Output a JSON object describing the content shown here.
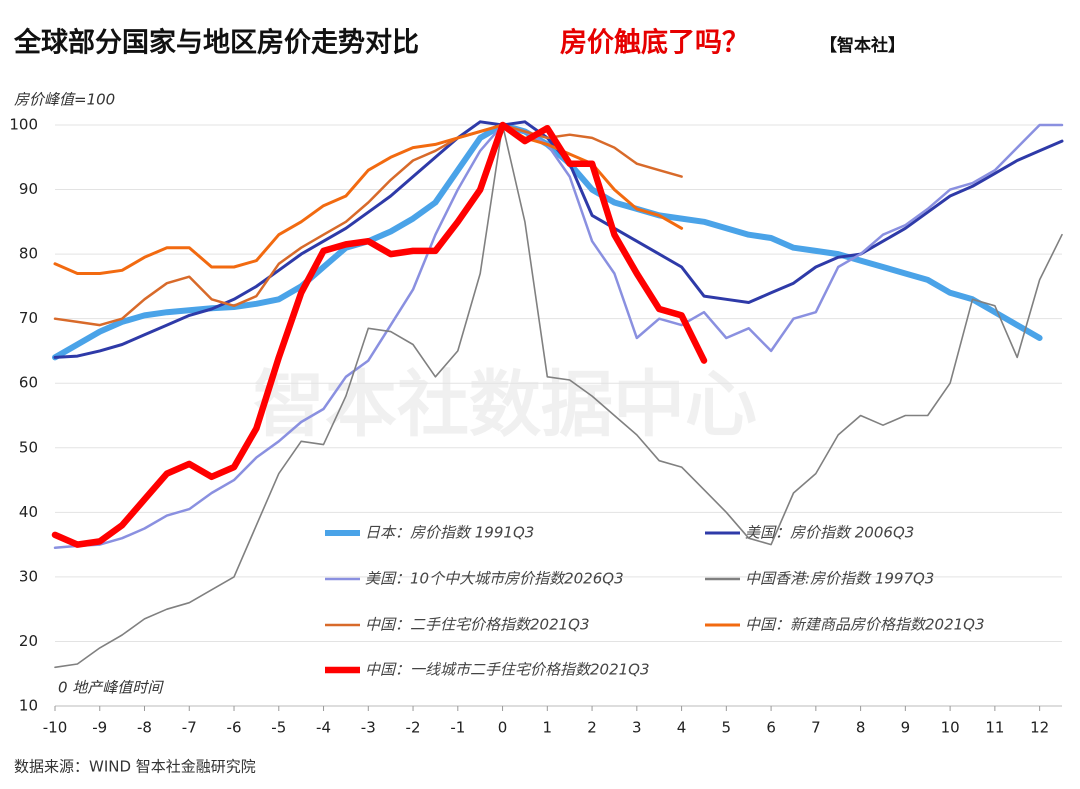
{
  "chart_data": {
    "type": "line",
    "title": "全球部分国家与地区房价走势对比",
    "subtitle": "房价触底了吗？",
    "brand": "【智本社】",
    "ylabel": "房价峰值=100",
    "xlabel": "0 地产峰值时间",
    "watermark": "智本社数据中心",
    "source": "数据来源：WIND 智本社金融研究院",
    "xlim": [
      -10,
      12.5
    ],
    "ylim": [
      10,
      100
    ],
    "xticks": [
      -10,
      -9,
      -8,
      -7,
      -6,
      -5,
      -4,
      -3,
      -2,
      -1,
      0,
      1,
      2,
      3,
      4,
      5,
      6,
      7,
      8,
      9,
      10,
      11,
      12
    ],
    "yticks": [
      10,
      20,
      30,
      40,
      50,
      60,
      70,
      80,
      90,
      100
    ],
    "grid": true,
    "x": [
      -10,
      -9.5,
      -9,
      -8.5,
      -8,
      -7.5,
      -7,
      -6.5,
      -6,
      -5.5,
      -5,
      -4.5,
      -4,
      -3.5,
      -3,
      -2.5,
      -2,
      -1.5,
      -1,
      -0.5,
      0,
      0.5,
      1,
      1.5,
      2,
      2.5,
      3,
      3.5,
      4,
      4.5,
      5,
      5.5,
      6,
      6.5,
      7,
      7.5,
      8,
      8.5,
      9,
      9.5,
      10,
      10.5,
      11,
      11.5,
      12,
      12.5
    ],
    "series": [
      {
        "name": "日本：房价指数 1991Q3",
        "color": "#4aa3e8",
        "values": [
          64,
          66,
          68,
          69.5,
          70.5,
          71,
          71.3,
          71.6,
          71.8,
          72.3,
          73,
          75,
          78,
          81,
          82,
          83.5,
          85.5,
          88,
          93,
          98,
          100,
          99,
          97,
          94,
          90,
          88,
          87,
          86,
          85.5,
          85,
          84,
          83,
          82.5,
          81,
          80.5,
          80,
          79,
          78,
          77,
          76,
          74,
          73,
          71,
          69,
          67,
          null
        ]
      },
      {
        "name": "美国：房价指数 2006Q3",
        "color": "#2e3aa8",
        "values": [
          64,
          64.2,
          65,
          66,
          67.5,
          69,
          70.5,
          71.5,
          73,
          75,
          77.5,
          80,
          82,
          84,
          86.5,
          89,
          92,
          95,
          98,
          100.5,
          100,
          100.5,
          98,
          94,
          86,
          84,
          82,
          80,
          78,
          73.5,
          73,
          72.5,
          74,
          75.5,
          78,
          79.5,
          80,
          82,
          84,
          86.5,
          89,
          90.5,
          92.5,
          94.5,
          96,
          97.5
        ]
      },
      {
        "name": "美国：10个中大城市房价指数2026Q3",
        "color": "#8a90e0",
        "values": [
          34.5,
          34.8,
          35,
          36,
          37.5,
          39.5,
          40.5,
          43,
          45,
          48.5,
          51,
          54,
          56,
          61,
          63.5,
          69,
          74.5,
          83,
          90,
          96,
          100,
          99,
          97,
          92,
          82,
          77,
          67,
          70,
          69,
          71,
          67,
          68.5,
          65,
          70,
          71,
          78,
          80,
          83,
          84.5,
          87,
          90,
          91,
          93,
          96.5,
          100,
          100
        ]
      },
      {
        "name": "中国香港:房价指数 1997Q3",
        "color": "#808080",
        "values": [
          16,
          16.5,
          19,
          21,
          23.5,
          25,
          26,
          28,
          30,
          38,
          46,
          51,
          50.5,
          58,
          68.5,
          68,
          66,
          61,
          65,
          77,
          100,
          85,
          61,
          60.5,
          58,
          55,
          52,
          48,
          47,
          43.5,
          40,
          36,
          35,
          43,
          46,
          52,
          55,
          53.5,
          55,
          55,
          60,
          73,
          72,
          64,
          76,
          83
        ]
      },
      {
        "name": "中国：二手住宅价格指数2021Q3",
        "color": "#d86a2a",
        "values": [
          70,
          69.5,
          69,
          70,
          73,
          75.5,
          76.5,
          73,
          72,
          73.5,
          78.5,
          81,
          83,
          85,
          88,
          91.5,
          94.5,
          96,
          98,
          99,
          100,
          99,
          98,
          98.5,
          98,
          96.5,
          94,
          93,
          92,
          null,
          null,
          null,
          null,
          null,
          null,
          null,
          null,
          null,
          null,
          null,
          null,
          null,
          null,
          null,
          null,
          null
        ]
      },
      {
        "name": "中国：新建商品房价格指数2021Q3",
        "color": "#f26a10",
        "values": [
          78.5,
          77,
          77,
          77.5,
          79.5,
          81,
          81,
          78,
          78,
          79,
          83,
          85,
          87.5,
          89,
          93,
          95,
          96.5,
          97,
          98,
          99,
          100,
          98,
          97,
          95.5,
          94,
          90,
          87,
          86,
          84,
          null,
          null,
          null,
          null,
          null,
          null,
          null,
          null,
          null,
          null,
          null,
          null,
          null,
          null,
          null,
          null,
          null
        ]
      },
      {
        "name": "中国：一线城市二手住宅价格指数2021Q3",
        "color": "#ff0000",
        "values": [
          36.5,
          35,
          35.5,
          38,
          42,
          46,
          47.5,
          45.5,
          47,
          53,
          64,
          74,
          80.5,
          81.5,
          82,
          80,
          80.5,
          80.5,
          85,
          90,
          100,
          97.5,
          99.5,
          94,
          94,
          83,
          77,
          71.5,
          70.5,
          63.5,
          null,
          null,
          null,
          null,
          null,
          null,
          null,
          null,
          null,
          null,
          null,
          null,
          null,
          null,
          null,
          null
        ]
      }
    ]
  }
}
